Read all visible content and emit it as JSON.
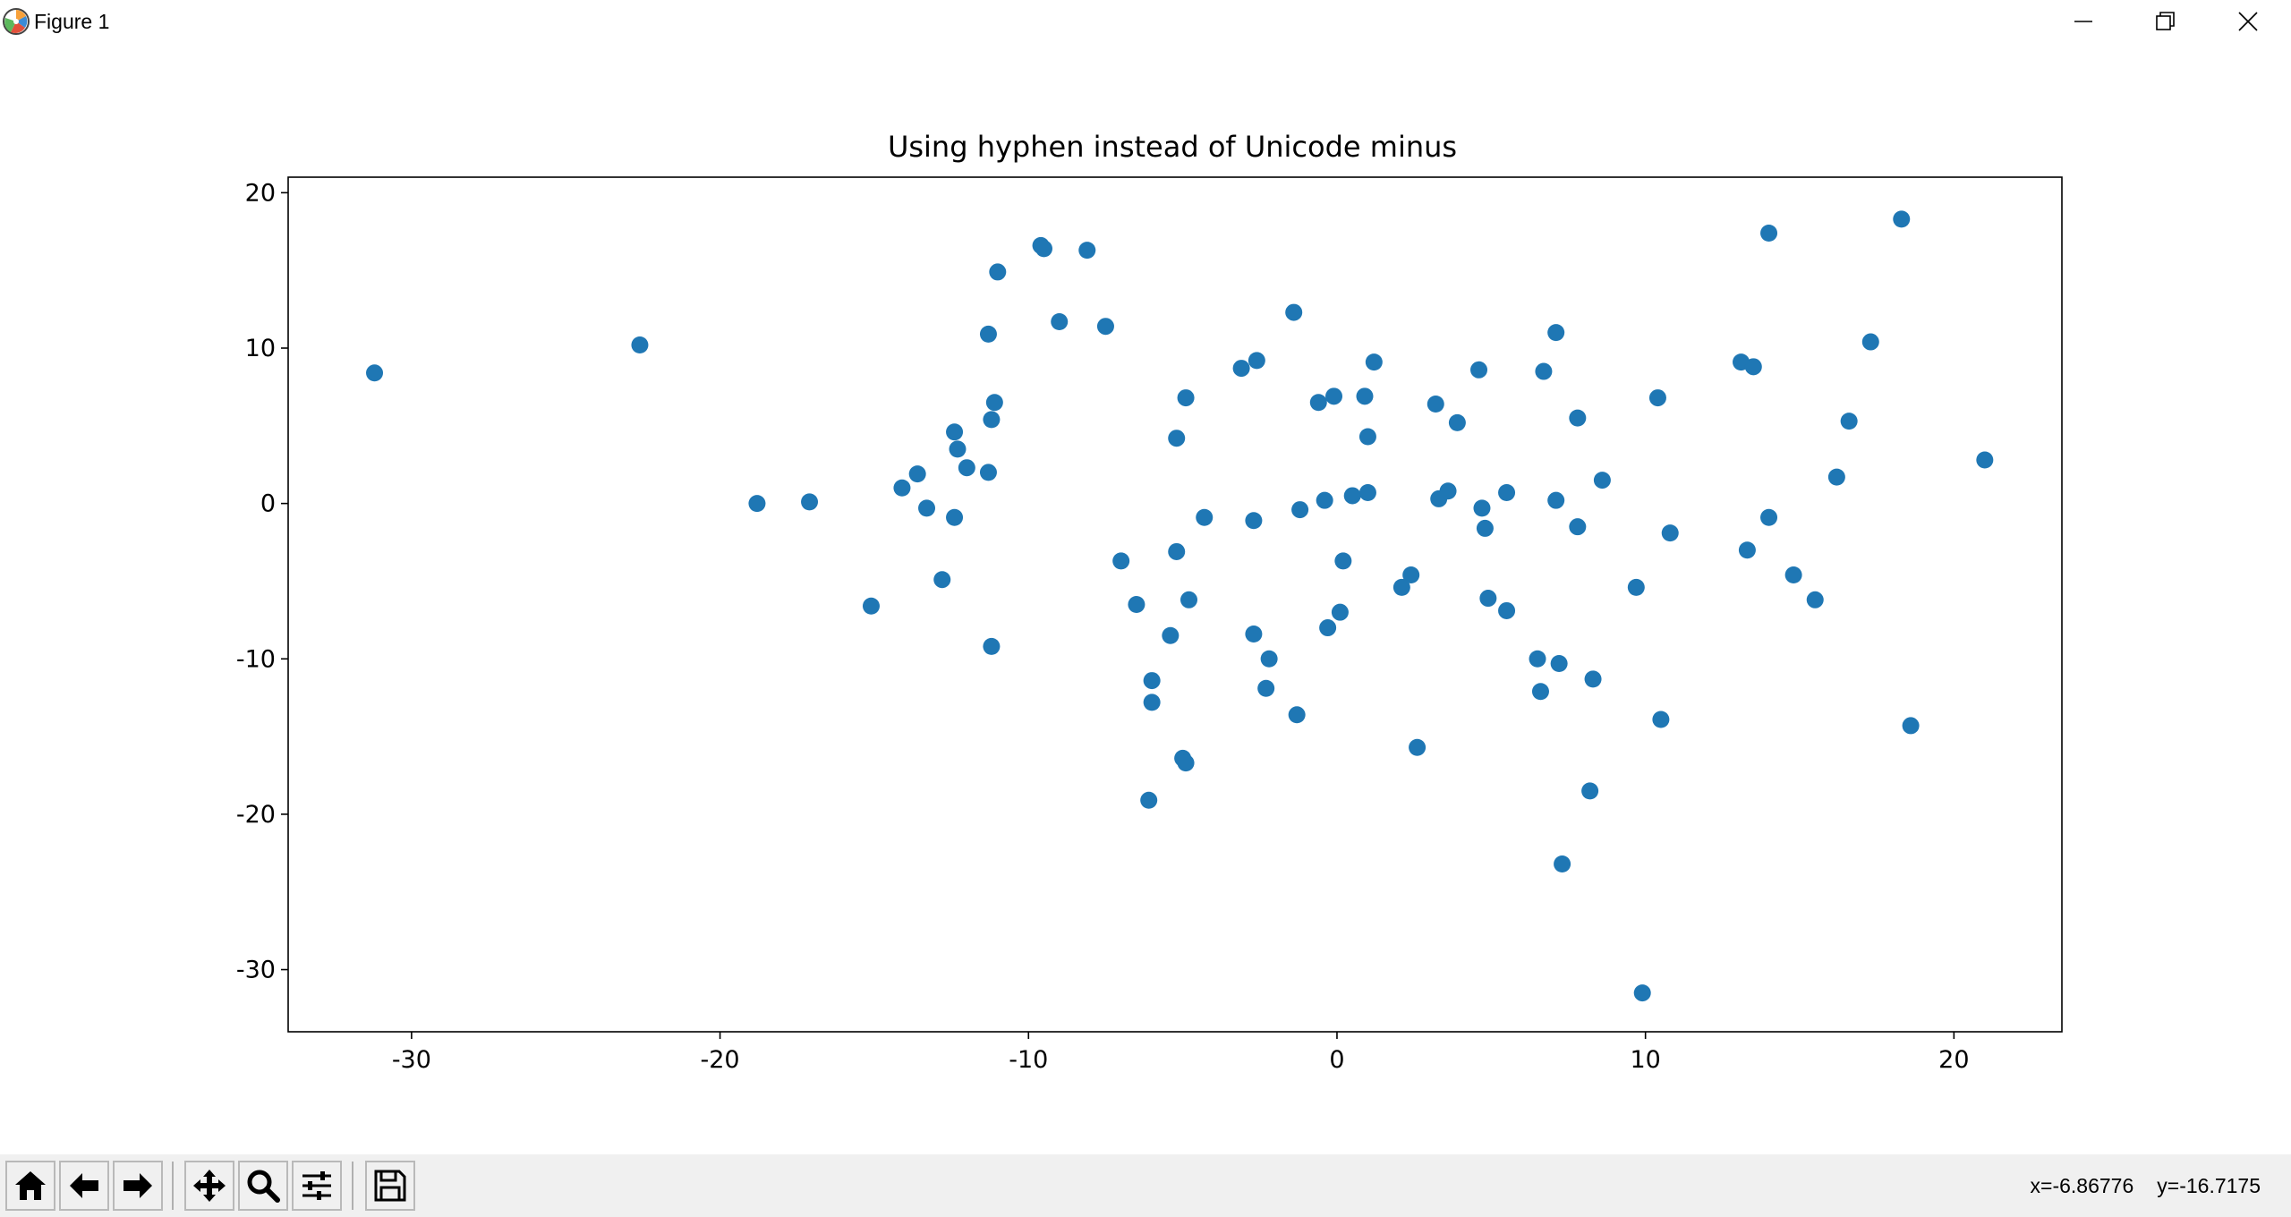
{
  "window": {
    "title": "Figure 1",
    "icon": "matplotlib-logo-icon",
    "controls": [
      "minimize-icon",
      "restore-icon",
      "close-icon"
    ]
  },
  "toolbar": {
    "buttons": [
      "home-icon",
      "back-arrow-icon",
      "forward-arrow-icon",
      "pan-move-icon",
      "zoom-magnifier-icon",
      "configure-subplots-icon",
      "save-floppy-icon"
    ],
    "coords": {
      "x": "x=-6.86776",
      "y": "y=-16.7175"
    }
  },
  "chart_data": {
    "type": "scatter",
    "title": "Using hyphen instead of Unicode minus",
    "xlabel": "",
    "ylabel": "",
    "xlim": [
      -34,
      23.5
    ],
    "ylim": [
      -34,
      21
    ],
    "xticks": [
      -30,
      -20,
      -10,
      0,
      10,
      20
    ],
    "xtick_labels": [
      "-30",
      "-20",
      "-10",
      "0",
      "10",
      "20"
    ],
    "yticks": [
      -30,
      -20,
      -10,
      0,
      10,
      20
    ],
    "ytick_labels": [
      "-30",
      "-20",
      "-10",
      "0",
      "10",
      "20"
    ],
    "grid": false,
    "marker_color": "#1f77b4",
    "points": [
      [
        -31.2,
        8.4
      ],
      [
        -22.6,
        10.2
      ],
      [
        -18.8,
        0.0
      ],
      [
        -17.1,
        0.1
      ],
      [
        -15.1,
        -6.6
      ],
      [
        -14.1,
        1.0
      ],
      [
        -13.6,
        1.9
      ],
      [
        -13.3,
        -0.3
      ],
      [
        -12.8,
        -4.9
      ],
      [
        -12.4,
        4.6
      ],
      [
        -12.3,
        3.5
      ],
      [
        -12.0,
        2.3
      ],
      [
        -12.4,
        -0.9
      ],
      [
        -11.3,
        10.9
      ],
      [
        -11.2,
        5.4
      ],
      [
        -11.1,
        6.5
      ],
      [
        -11.0,
        14.9
      ],
      [
        -11.3,
        2.0
      ],
      [
        -11.2,
        -9.2
      ],
      [
        -9.6,
        16.6
      ],
      [
        -9.5,
        16.4
      ],
      [
        -9.0,
        11.7
      ],
      [
        -8.1,
        16.3
      ],
      [
        -7.5,
        11.4
      ],
      [
        -7.0,
        -3.7
      ],
      [
        -6.5,
        -6.5
      ],
      [
        -6.0,
        -11.4
      ],
      [
        -6.0,
        -12.8
      ],
      [
        -6.1,
        -19.1
      ],
      [
        -5.4,
        -8.5
      ],
      [
        -5.2,
        4.2
      ],
      [
        -5.2,
        -3.1
      ],
      [
        -4.9,
        6.8
      ],
      [
        -4.8,
        -6.2
      ],
      [
        -5.0,
        -16.4
      ],
      [
        -4.9,
        -16.7
      ],
      [
        -4.3,
        -0.9
      ],
      [
        -3.1,
        8.7
      ],
      [
        -2.6,
        9.2
      ],
      [
        -2.7,
        -1.1
      ],
      [
        -2.7,
        -8.4
      ],
      [
        -2.2,
        -10.0
      ],
      [
        -2.3,
        -11.9
      ],
      [
        -1.4,
        12.3
      ],
      [
        -1.2,
        -0.4
      ],
      [
        -1.3,
        -13.6
      ],
      [
        -0.6,
        6.5
      ],
      [
        -0.4,
        0.2
      ],
      [
        -0.3,
        -8.0
      ],
      [
        -0.1,
        6.9
      ],
      [
        0.2,
        -3.7
      ],
      [
        0.1,
        -7.0
      ],
      [
        0.5,
        0.5
      ],
      [
        0.9,
        6.9
      ],
      [
        1.0,
        4.3
      ],
      [
        1.0,
        0.7
      ],
      [
        1.2,
        9.1
      ],
      [
        2.1,
        -5.4
      ],
      [
        2.4,
        -4.6
      ],
      [
        2.6,
        -15.7
      ],
      [
        3.2,
        6.4
      ],
      [
        3.3,
        0.3
      ],
      [
        3.6,
        0.8
      ],
      [
        3.9,
        5.2
      ],
      [
        4.6,
        8.6
      ],
      [
        4.7,
        -0.3
      ],
      [
        4.8,
        -1.6
      ],
      [
        4.9,
        -6.1
      ],
      [
        5.5,
        0.7
      ],
      [
        5.5,
        -6.9
      ],
      [
        6.5,
        -10.0
      ],
      [
        6.6,
        -12.1
      ],
      [
        6.7,
        8.5
      ],
      [
        7.1,
        11.0
      ],
      [
        7.1,
        0.2
      ],
      [
        7.2,
        -10.3
      ],
      [
        7.3,
        -23.2
      ],
      [
        7.8,
        5.5
      ],
      [
        7.8,
        -1.5
      ],
      [
        8.2,
        -18.5
      ],
      [
        8.3,
        -11.3
      ],
      [
        8.6,
        1.5
      ],
      [
        9.7,
        -5.4
      ],
      [
        9.9,
        -31.5
      ],
      [
        10.4,
        6.8
      ],
      [
        10.5,
        -13.9
      ],
      [
        10.8,
        -1.9
      ],
      [
        13.1,
        9.1
      ],
      [
        13.3,
        -3.0
      ],
      [
        13.5,
        8.8
      ],
      [
        14.0,
        17.4
      ],
      [
        14.0,
        -0.9
      ],
      [
        14.8,
        -4.6
      ],
      [
        15.5,
        -6.2
      ],
      [
        16.2,
        1.7
      ],
      [
        16.6,
        5.3
      ],
      [
        17.3,
        10.4
      ],
      [
        18.3,
        18.3
      ],
      [
        18.6,
        -14.3
      ],
      [
        21.0,
        2.8
      ]
    ]
  }
}
